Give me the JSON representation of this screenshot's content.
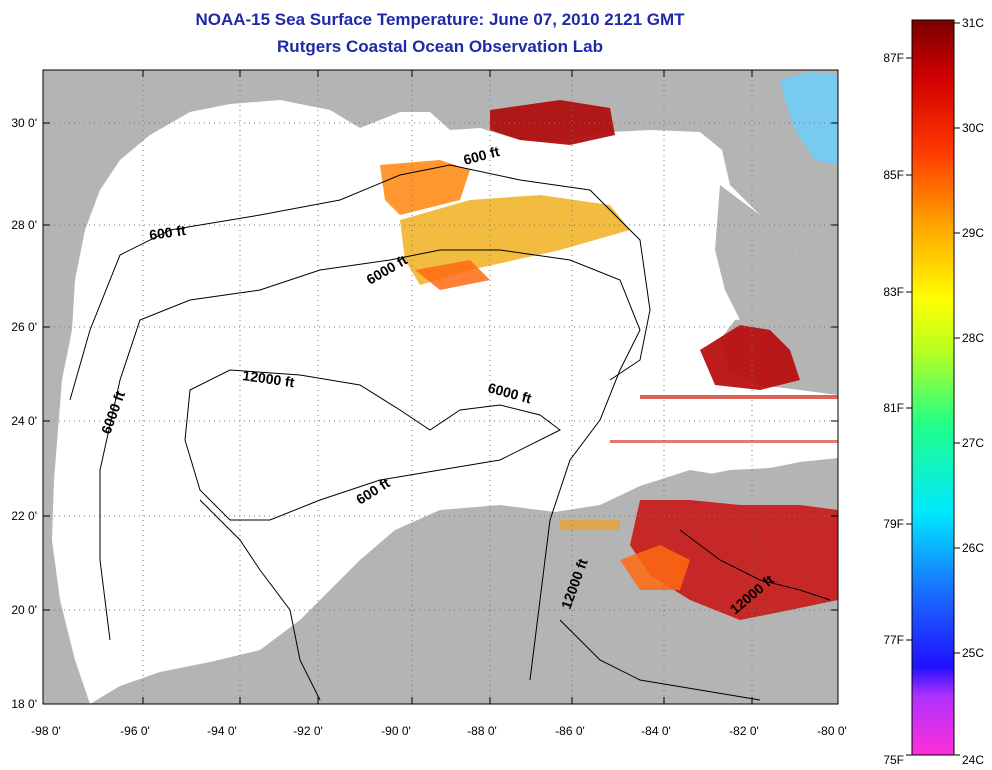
{
  "header": {
    "title": "NOAA-15 Sea Surface Temperature:  June 07, 2010 2121 GMT",
    "subtitle": "Rutgers Coastal Ocean Observation Lab"
  },
  "axes": {
    "lat_labels": [
      "18 0'",
      "20 0'",
      "22 0'",
      "24 0'",
      "26 0'",
      "28 0'",
      "30 0'"
    ],
    "lon_labels": [
      "-98 0'",
      "-96 0'",
      "-94 0'",
      "-92 0'",
      "-90 0'",
      "-88 0'",
      "-86 0'",
      "-84 0'",
      "-82 0'",
      "-80 0'"
    ]
  },
  "contours": {
    "c600_a": "600 ft",
    "c600_b": "600 ft",
    "c600_c": "600 ft",
    "c6000_a": "6000 ft",
    "c6000_b": "6000 ft",
    "c6000_c": "6000 ft",
    "c12000_a": "12000 ft",
    "c12000_b": "12000 ft",
    "c12000_c": "12000 ft"
  },
  "colorbar": {
    "celsius": [
      "31C",
      "30C",
      "29C",
      "28C",
      "27C",
      "26C",
      "25C",
      "24C"
    ],
    "fahrenheit": [
      "87F",
      "85F",
      "83F",
      "81F",
      "79F",
      "77F",
      "75F"
    ]
  },
  "colors": {
    "land": "#b4b4b4",
    "title": "#1e2aa8",
    "hot": "#8b0000"
  }
}
